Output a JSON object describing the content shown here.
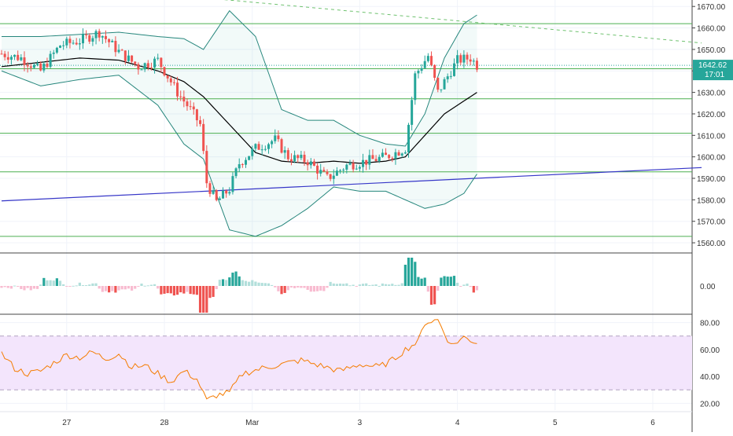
{
  "colors": {
    "up": "#26a69a",
    "down": "#ef5350",
    "up_light": "#b2dfdb",
    "down_light": "#f8bbd0",
    "bollinger": "#26867c",
    "bollinger_fill": "#26a69a",
    "basis": "#000000",
    "hline": "#4caf50",
    "trend_blue": "#3636c8",
    "trend_dash": "#6fc26f",
    "rsi_line": "#f57c00",
    "rsi_band": "#f3e5fc",
    "grid": "#f0f3fa",
    "axis_text": "#333333",
    "price_tag": "#26a69a"
  },
  "price_tag": {
    "value": "1642.62",
    "countdown": "17:01"
  },
  "chart_data": [
    {
      "type": "candlestick",
      "pane": "price",
      "ylim": [
        1556,
        1673
      ],
      "y_ticks": [
        "1560.00",
        "1570.00",
        "1580.00",
        "1590.00",
        "1600.00",
        "1610.00",
        "1620.00",
        "1630.00",
        "1640.00",
        "1650.00",
        "1660.00",
        "1670.00"
      ],
      "x_ticks": [
        "27",
        "28",
        "Mar",
        "3",
        "4",
        "5",
        "6"
      ],
      "bar_count": 120,
      "bar_step_hours": 1,
      "candle_close_path": [
        [
          0,
          1648
        ],
        [
          6,
          1646
        ],
        [
          12,
          1640
        ],
        [
          18,
          1652
        ],
        [
          24,
          1654
        ],
        [
          30,
          1658
        ],
        [
          36,
          1649
        ],
        [
          42,
          1642
        ],
        [
          48,
          1645
        ],
        [
          54,
          1630
        ],
        [
          58,
          1622
        ],
        [
          61,
          1615
        ],
        [
          63,
          1588
        ],
        [
          66,
          1579
        ],
        [
          70,
          1585
        ],
        [
          73,
          1597
        ],
        [
          78,
          1604
        ],
        [
          84,
          1608
        ],
        [
          88,
          1600
        ],
        [
          94,
          1598
        ],
        [
          100,
          1590
        ],
        [
          106,
          1596
        ],
        [
          112,
          1598
        ],
        [
          118,
          1600
        ],
        [
          124,
          1604
        ],
        [
          127,
          1638
        ],
        [
          131,
          1647
        ],
        [
          134,
          1630
        ],
        [
          140,
          1645
        ],
        [
          144,
          1646
        ],
        [
          146,
          1642.62
        ]
      ],
      "horizontal_levels": [
        1662,
        1641,
        1627,
        1611,
        1593,
        1563
      ],
      "blue_trendline": [
        [
          0,
          1579.5
        ],
        [
          215,
          1595
        ]
      ],
      "dashed_trendline": [
        [
          55,
          1675
        ],
        [
          215,
          1653
        ]
      ],
      "bollinger": {
        "basis": [
          [
            0,
            1642
          ],
          [
            12,
            1644
          ],
          [
            24,
            1646
          ],
          [
            36,
            1645
          ],
          [
            48,
            1640
          ],
          [
            56,
            1635
          ],
          [
            62,
            1628
          ],
          [
            70,
            1615
          ],
          [
            78,
            1602
          ],
          [
            86,
            1598
          ],
          [
            94,
            1597
          ],
          [
            102,
            1598
          ],
          [
            110,
            1597
          ],
          [
            118,
            1598
          ],
          [
            124,
            1600
          ],
          [
            130,
            1610
          ],
          [
            136,
            1620
          ],
          [
            146,
            1630
          ]
        ],
        "upper": [
          [
            0,
            1656
          ],
          [
            12,
            1656
          ],
          [
            24,
            1657
          ],
          [
            36,
            1658
          ],
          [
            48,
            1656
          ],
          [
            56,
            1655
          ],
          [
            62,
            1650
          ],
          [
            70,
            1668
          ],
          [
            78,
            1656
          ],
          [
            86,
            1622
          ],
          [
            94,
            1617
          ],
          [
            102,
            1617
          ],
          [
            110,
            1610
          ],
          [
            118,
            1606
          ],
          [
            124,
            1605
          ],
          [
            130,
            1620
          ],
          [
            136,
            1646
          ],
          [
            142,
            1662
          ],
          [
            146,
            1666
          ]
        ],
        "lower": [
          [
            0,
            1640
          ],
          [
            12,
            1633
          ],
          [
            24,
            1636
          ],
          [
            36,
            1638
          ],
          [
            48,
            1624
          ],
          [
            56,
            1606
          ],
          [
            62,
            1599
          ],
          [
            70,
            1566
          ],
          [
            78,
            1563
          ],
          [
            86,
            1568
          ],
          [
            94,
            1576
          ],
          [
            102,
            1586
          ],
          [
            110,
            1584
          ],
          [
            118,
            1584
          ],
          [
            124,
            1580
          ],
          [
            130,
            1576
          ],
          [
            136,
            1578
          ],
          [
            142,
            1583
          ],
          [
            146,
            1592
          ]
        ]
      }
    },
    {
      "type": "histogram",
      "pane": "oscillator",
      "y_ticks": [
        "0.00"
      ],
      "zero": 0
    },
    {
      "type": "line",
      "pane": "rsi",
      "ylim": [
        15,
        85
      ],
      "y_ticks": [
        "20.00",
        "40.00",
        "60.00",
        "80.00"
      ],
      "band": [
        30,
        70
      ],
      "path": [
        [
          0,
          57
        ],
        [
          4,
          46
        ],
        [
          8,
          42
        ],
        [
          12,
          44
        ],
        [
          16,
          50
        ],
        [
          20,
          56
        ],
        [
          24,
          54
        ],
        [
          28,
          58
        ],
        [
          32,
          53
        ],
        [
          36,
          57
        ],
        [
          40,
          47
        ],
        [
          44,
          48
        ],
        [
          48,
          42
        ],
        [
          52,
          36
        ],
        [
          56,
          44
        ],
        [
          60,
          38
        ],
        [
          63,
          22
        ],
        [
          66,
          26
        ],
        [
          70,
          28
        ],
        [
          74,
          42
        ],
        [
          80,
          46
        ],
        [
          86,
          49
        ],
        [
          92,
          52
        ],
        [
          98,
          48
        ],
        [
          104,
          44
        ],
        [
          110,
          49
        ],
        [
          116,
          47
        ],
        [
          120,
          52
        ],
        [
          124,
          60
        ],
        [
          128,
          66
        ],
        [
          130,
          80
        ],
        [
          134,
          82
        ],
        [
          138,
          63
        ],
        [
          142,
          69
        ],
        [
          146,
          65
        ]
      ]
    }
  ]
}
